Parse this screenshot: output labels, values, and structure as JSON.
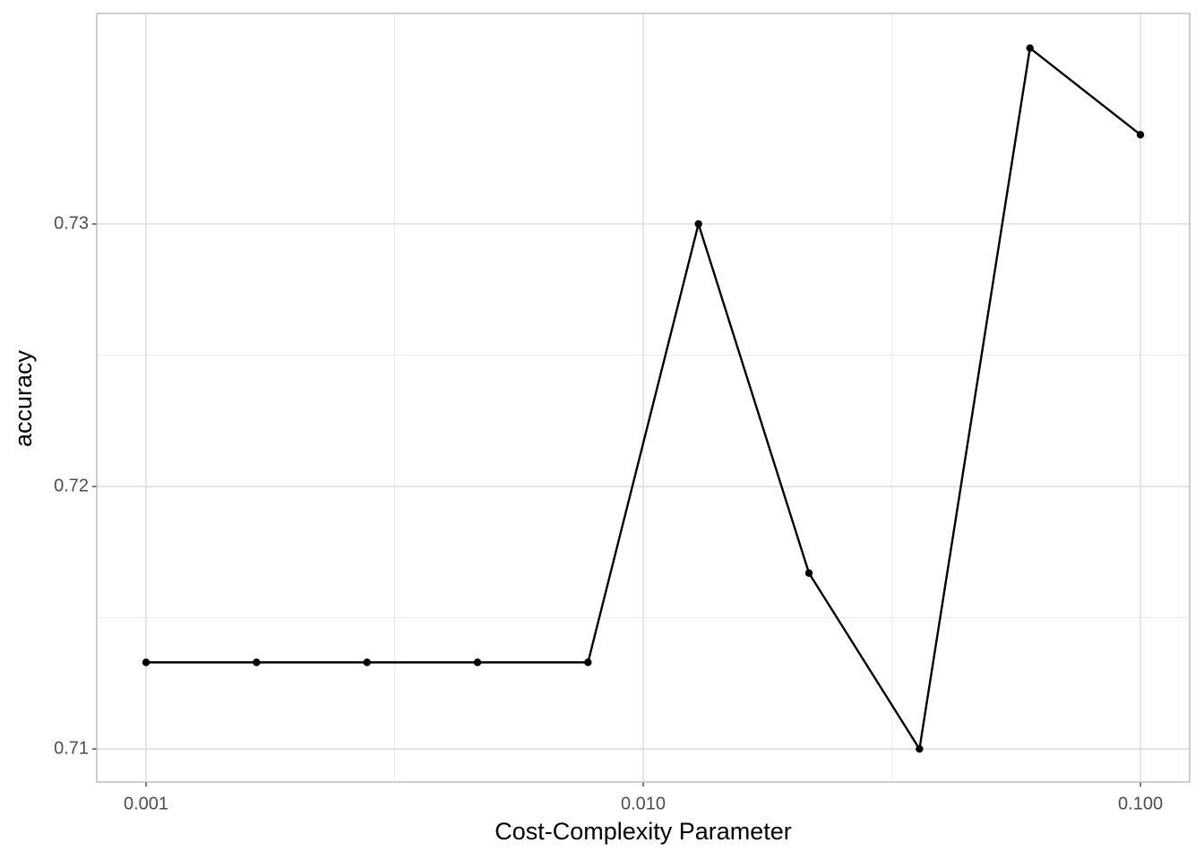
{
  "chart_data": {
    "type": "line",
    "x_label": "Cost-Complexity Parameter",
    "y_label": "accuracy",
    "x_log": true,
    "grid": true,
    "x": [
      0.001,
      0.001668,
      0.002783,
      0.004642,
      0.007743,
      0.012915,
      0.021544,
      0.035938,
      0.059948,
      0.1
    ],
    "series": [
      {
        "color": "#000000",
        "values": [
          0.7133,
          0.7133,
          0.7133,
          0.7133,
          0.7133,
          0.73,
          0.7167,
          0.71,
          0.7367,
          0.7334
        ]
      }
    ],
    "xlim": [
      0.000796,
      0.1256
    ],
    "ylim": [
      0.70874,
      0.73802
    ],
    "xticks": [
      0.001,
      {
        "value": 0.01,
        "label": "0.010"
      },
      {
        "value": 0.1,
        "label": "0.100"
      }
    ],
    "yticks": [
      0.71,
      0.72,
      0.73
    ]
  }
}
